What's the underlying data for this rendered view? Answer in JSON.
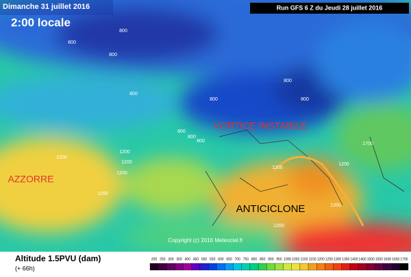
{
  "header": {
    "date": "Dimanche 31 juillet 2016",
    "time": "2:00 locale",
    "run": "Run GFS 6 Z du Jeudi 28 juillet 2016"
  },
  "annotations": [
    "VORTICE INSTABILE",
    "AZZORRE",
    "ANTICICLONE"
  ],
  "contour_labels": [
    "800",
    "800",
    "800",
    "800",
    "800",
    "800",
    "800",
    "800",
    "800",
    "800",
    "1200",
    "1200",
    "1200",
    "1200",
    "1200",
    "1200",
    "1200",
    "1200",
    "1200",
    "1700"
  ],
  "footer": {
    "title": "Altitude 1.5PVU (dam)",
    "lead": "(+ 66h)",
    "copyright": "Copyright (c) 2016 Meteociel.fr"
  },
  "colorbar": {
    "labels": [
      "200",
      "250",
      "300",
      "350",
      "400",
      "450",
      "500",
      "550",
      "600",
      "650",
      "700",
      "750",
      "800",
      "850",
      "900",
      "950",
      "1000",
      "1050",
      "1100",
      "1150",
      "1200",
      "1250",
      "1300",
      "1350",
      "1400",
      "1450",
      "1500",
      "1550",
      "1600",
      "1650",
      "1700"
    ]
  }
}
